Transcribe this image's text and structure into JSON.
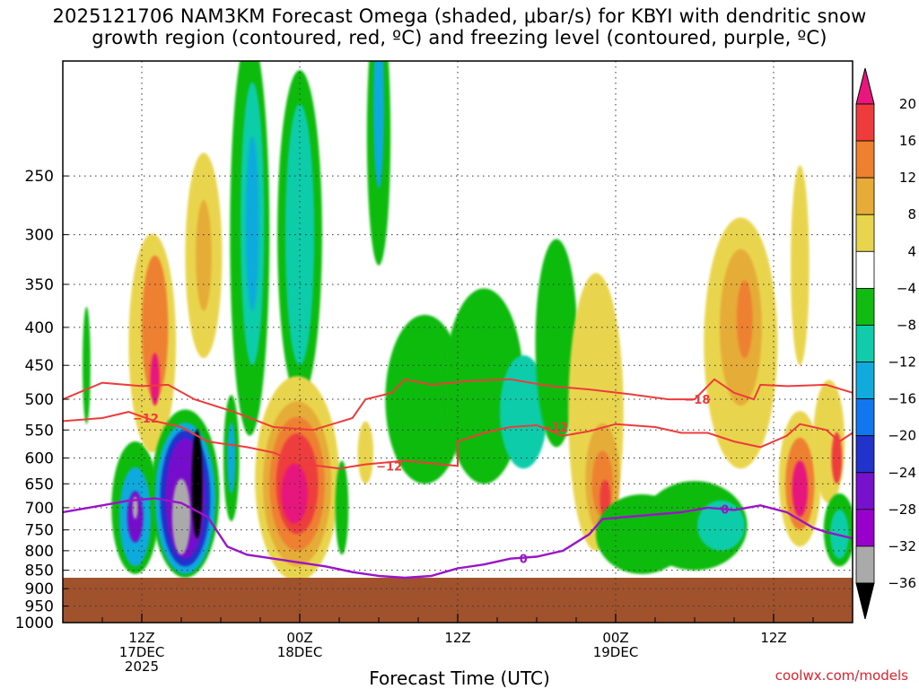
{
  "title_line1": "2025121706 NAM3KM Forecast Omega (shaded, μbar/s) for KBYI with dendritic snow",
  "title_line2": "growth region (contoured, red, ºC) and freezing level (contoured, purple, ºC)",
  "credit": "coolwx.com/models",
  "chart_data": {
    "type": "heatmap",
    "title": "2025121706 NAM3KM Forecast Omega (shaded, μbar/s) for KBYI with dendritic snow growth region (contoured, red, ºC) and freezing level (contoured, purple, ºC)",
    "xlabel": "Forecast Time (UTC)",
    "ylabel": "",
    "x_range_hours": [
      0,
      60
    ],
    "y_scale": "log-pressure",
    "ylim": [
      1000,
      175
    ],
    "x_ticks": [
      {
        "hour": 6,
        "lines": [
          "12Z",
          "17DEC",
          "2025"
        ]
      },
      {
        "hour": 18,
        "lines": [
          "00Z",
          "18DEC"
        ]
      },
      {
        "hour": 30,
        "lines": [
          "12Z"
        ]
      },
      {
        "hour": 42,
        "lines": [
          "00Z",
          "19DEC"
        ]
      },
      {
        "hour": 54,
        "lines": [
          "12Z"
        ]
      }
    ],
    "y_ticks": [
      250,
      300,
      350,
      400,
      450,
      500,
      550,
      600,
      650,
      700,
      750,
      800,
      850,
      900,
      950,
      1000
    ],
    "colorbar": {
      "labels": [
        "20",
        "16",
        "12",
        "8",
        "4",
        "−4",
        "−8",
        "−12",
        "−16",
        "−20",
        "−24",
        "−28",
        "−32",
        "−36"
      ],
      "bins": [
        {
          "color": "#e7177d"
        },
        {
          "color": "#ee3c3c"
        },
        {
          "color": "#ee8030"
        },
        {
          "color": "#e6ac37"
        },
        {
          "color": "#e9d54d"
        },
        {
          "color": "#ffffff"
        },
        {
          "color": "#11bb11"
        },
        {
          "color": "#11ccaa"
        },
        {
          "color": "#11aadd"
        },
        {
          "color": "#1177ee"
        },
        {
          "color": "#2233cc"
        },
        {
          "color": "#7711cc"
        },
        {
          "color": "#9900cc"
        },
        {
          "color": "#aaaaaa"
        },
        {
          "color": "#000000"
        }
      ]
    },
    "terrain": {
      "color": "#a0522d",
      "surface_pressure_hpa": 870
    },
    "omega_cells": [
      {
        "t": 1.8,
        "p": 450,
        "rt": 0.3,
        "rp": 90,
        "color": "#11bb11"
      },
      {
        "t": 5.5,
        "p": 700,
        "rt": 1.8,
        "rp": 160,
        "color": "#11bb11"
      },
      {
        "t": 5.5,
        "p": 720,
        "rt": 1.2,
        "rp": 120,
        "color": "#11aadd"
      },
      {
        "t": 5.5,
        "p": 720,
        "rt": 0.6,
        "rp": 60,
        "color": "#7711cc"
      },
      {
        "t": 5.5,
        "p": 700,
        "rt": 0.2,
        "rp": 25,
        "color": "#aaaaaa"
      },
      {
        "t": 6.8,
        "p": 420,
        "rt": 1.8,
        "rp": 170,
        "color": "#e9d54d"
      },
      {
        "t": 7.0,
        "p": 400,
        "rt": 1.0,
        "rp": 100,
        "color": "#ee8030"
      },
      {
        "t": 7.0,
        "p": 470,
        "rt": 0.35,
        "rp": 40,
        "color": "#e7177d"
      },
      {
        "t": 9.3,
        "p": 670,
        "rt": 2.6,
        "rp": 200,
        "color": "#11bb11"
      },
      {
        "t": 9.3,
        "p": 680,
        "rt": 2.3,
        "rp": 180,
        "color": "#11aadd"
      },
      {
        "t": 9.3,
        "p": 680,
        "rt": 1.9,
        "rp": 160,
        "color": "#2233cc"
      },
      {
        "t": 9.3,
        "p": 680,
        "rt": 1.5,
        "rp": 140,
        "color": "#7711cc"
      },
      {
        "t": 9.0,
        "p": 720,
        "rt": 0.7,
        "rp": 90,
        "color": "#aaaaaa"
      },
      {
        "t": 10.2,
        "p": 650,
        "rt": 0.4,
        "rp": 120,
        "color": "#000000"
      },
      {
        "t": 10.7,
        "p": 320,
        "rt": 1.4,
        "rp": 120,
        "color": "#e9d54d"
      },
      {
        "t": 10.7,
        "p": 320,
        "rt": 0.6,
        "rp": 60,
        "color": "#e6ac37"
      },
      {
        "t": 12.8,
        "p": 600,
        "rt": 0.6,
        "rp": 130,
        "color": "#11bb11"
      },
      {
        "t": 12.8,
        "p": 600,
        "rt": 0.3,
        "rp": 70,
        "color": "#11aadd"
      },
      {
        "t": 14.2,
        "p": 300,
        "rt": 1.5,
        "rp": 260,
        "color": "#11bb11"
      },
      {
        "t": 14.4,
        "p": 290,
        "rt": 0.9,
        "rp": 160,
        "color": "#11ccaa"
      },
      {
        "t": 14.4,
        "p": 290,
        "rt": 0.5,
        "rp": 90,
        "color": "#11aadd"
      },
      {
        "t": 18.0,
        "p": 300,
        "rt": 1.7,
        "rp": 200,
        "color": "#11bb11"
      },
      {
        "t": 18.0,
        "p": 300,
        "rt": 1.1,
        "rp": 150,
        "color": "#11ccaa"
      },
      {
        "t": 17.8,
        "p": 640,
        "rt": 3.2,
        "rp": 240,
        "color": "#e9d54d"
      },
      {
        "t": 17.8,
        "p": 650,
        "rt": 2.6,
        "rp": 190,
        "color": "#e6ac37"
      },
      {
        "t": 17.8,
        "p": 650,
        "rt": 2.1,
        "rp": 150,
        "color": "#ee8030"
      },
      {
        "t": 17.8,
        "p": 650,
        "rt": 1.6,
        "rp": 110,
        "color": "#ee3c3c"
      },
      {
        "t": 17.6,
        "p": 670,
        "rt": 1.0,
        "rp": 65,
        "color": "#e7177d"
      },
      {
        "t": 21.2,
        "p": 700,
        "rt": 0.5,
        "rp": 110,
        "color": "#11bb11"
      },
      {
        "t": 24.0,
        "p": 220,
        "rt": 0.9,
        "rp": 110,
        "color": "#11bb11"
      },
      {
        "t": 24.0,
        "p": 200,
        "rt": 0.4,
        "rp": 60,
        "color": "#11aadd"
      },
      {
        "t": 23.0,
        "p": 590,
        "rt": 0.6,
        "rp": 60,
        "color": "#e9d54d"
      },
      {
        "t": 27.5,
        "p": 500,
        "rt": 3.0,
        "rp": 150,
        "color": "#11bb11"
      },
      {
        "t": 32.0,
        "p": 480,
        "rt": 3.0,
        "rp": 170,
        "color": "#11bb11"
      },
      {
        "t": 35.0,
        "p": 520,
        "rt": 1.8,
        "rp": 100,
        "color": "#11ccaa"
      },
      {
        "t": 37.5,
        "p": 420,
        "rt": 1.6,
        "rp": 160,
        "color": "#11bb11"
      },
      {
        "t": 40.5,
        "p": 520,
        "rt": 2.1,
        "rp": 280,
        "color": "#e9d54d"
      },
      {
        "t": 41.0,
        "p": 640,
        "rt": 1.3,
        "rp": 120,
        "color": "#e6ac37"
      },
      {
        "t": 41.0,
        "p": 650,
        "rt": 0.8,
        "rp": 70,
        "color": "#ee8030"
      },
      {
        "t": 41.2,
        "p": 680,
        "rt": 0.4,
        "rp": 40,
        "color": "#ee3c3c"
      },
      {
        "t": 44.0,
        "p": 760,
        "rt": 3.5,
        "rp": 100,
        "color": "#11bb11"
      },
      {
        "t": 48.0,
        "p": 740,
        "rt": 4.0,
        "rp": 110,
        "color": "#11bb11"
      },
      {
        "t": 50.0,
        "p": 740,
        "rt": 1.8,
        "rp": 60,
        "color": "#11ccaa"
      },
      {
        "t": 51.5,
        "p": 420,
        "rt": 2.8,
        "rp": 200,
        "color": "#e9d54d"
      },
      {
        "t": 51.5,
        "p": 400,
        "rt": 1.6,
        "rp": 110,
        "color": "#e6ac37"
      },
      {
        "t": 51.8,
        "p": 390,
        "rt": 0.6,
        "rp": 50,
        "color": "#ee8030"
      },
      {
        "t": 56.0,
        "p": 330,
        "rt": 0.7,
        "rp": 120,
        "color": "#e9d54d"
      },
      {
        "t": 56.0,
        "p": 640,
        "rt": 1.6,
        "rp": 150,
        "color": "#e9d54d"
      },
      {
        "t": 56.0,
        "p": 650,
        "rt": 1.1,
        "rp": 100,
        "color": "#ee8030"
      },
      {
        "t": 56.0,
        "p": 660,
        "rt": 0.6,
        "rp": 60,
        "color": "#e7177d"
      },
      {
        "t": 58.2,
        "p": 570,
        "rt": 1.2,
        "rp": 120,
        "color": "#e9d54d"
      },
      {
        "t": 58.8,
        "p": 600,
        "rt": 0.4,
        "rp": 50,
        "color": "#ee3c3c"
      },
      {
        "t": 59.0,
        "p": 750,
        "rt": 1.2,
        "rp": 90,
        "color": "#11bb11"
      },
      {
        "t": 59.0,
        "p": 760,
        "rt": 0.7,
        "rp": 60,
        "color": "#11ccaa"
      }
    ],
    "dgz_contours": [
      {
        "label": "−18",
        "label_t": 48.2,
        "label_p": 500,
        "points": [
          [
            0,
            500
          ],
          [
            3,
            475
          ],
          [
            6,
            480
          ],
          [
            8,
            478
          ],
          [
            10,
            500
          ],
          [
            13,
            520
          ],
          [
            16,
            545
          ],
          [
            19,
            550
          ],
          [
            22,
            530
          ],
          [
            23,
            500
          ],
          [
            25,
            490
          ],
          [
            26,
            470
          ],
          [
            28,
            478
          ],
          [
            31,
            472
          ],
          [
            34,
            470
          ],
          [
            37,
            480
          ],
          [
            40,
            485
          ],
          [
            43,
            492
          ],
          [
            46,
            500
          ],
          [
            48,
            500
          ],
          [
            49.5,
            470
          ],
          [
            51,
            490
          ],
          [
            52.5,
            500
          ],
          [
            53,
            478
          ],
          [
            55,
            480
          ],
          [
            58,
            478
          ],
          [
            60,
            490
          ]
        ]
      },
      {
        "label": "−12",
        "label_t": 6.3,
        "label_p": 530,
        "points": [
          [
            0,
            535
          ],
          [
            3,
            530
          ],
          [
            5,
            520
          ],
          [
            7,
            535
          ],
          [
            9,
            545
          ],
          [
            11,
            570
          ],
          [
            14,
            580
          ],
          [
            16,
            590
          ],
          [
            18,
            610
          ],
          [
            21,
            620
          ],
          [
            23,
            612
          ],
          [
            26,
            605
          ],
          [
            28,
            610
          ],
          [
            30,
            615
          ],
          [
            30,
            570
          ],
          [
            32,
            555
          ],
          [
            34,
            545
          ],
          [
            36,
            542
          ],
          [
            38,
            560
          ],
          [
            40,
            552
          ],
          [
            42,
            540
          ],
          [
            45,
            545
          ],
          [
            47,
            555
          ],
          [
            49,
            555
          ],
          [
            51,
            570
          ],
          [
            53,
            580
          ],
          [
            55,
            560
          ],
          [
            56,
            540
          ],
          [
            58,
            550
          ],
          [
            59,
            570
          ],
          [
            60,
            555
          ]
        ]
      }
    ],
    "dgz_labels_extra": [
      {
        "label": "−12",
        "t": 24.8,
        "p": 615
      },
      {
        "label": "−12",
        "t": 37.4,
        "p": 545
      }
    ],
    "freezing_contour": {
      "label": "0",
      "label_t": 35.0,
      "label_p": 820,
      "label2_t": 50.3,
      "label2_p": 703,
      "points": [
        [
          0,
          710
        ],
        [
          3,
          695
        ],
        [
          5,
          685
        ],
        [
          7,
          680
        ],
        [
          9,
          690
        ],
        [
          11,
          720
        ],
        [
          12.5,
          790
        ],
        [
          14,
          810
        ],
        [
          16,
          820
        ],
        [
          18,
          830
        ],
        [
          20,
          840
        ],
        [
          22,
          855
        ],
        [
          24,
          865
        ],
        [
          26,
          870
        ],
        [
          28,
          865
        ],
        [
          30,
          845
        ],
        [
          32,
          835
        ],
        [
          34,
          820
        ],
        [
          36,
          815
        ],
        [
          38,
          800
        ],
        [
          40,
          760
        ],
        [
          41,
          725
        ],
        [
          43,
          720
        ],
        [
          45,
          715
        ],
        [
          47,
          710
        ],
        [
          49,
          700
        ],
        [
          51,
          705
        ],
        [
          53,
          695
        ],
        [
          55,
          710
        ],
        [
          57,
          745
        ],
        [
          58,
          755
        ],
        [
          60,
          770
        ]
      ]
    }
  }
}
